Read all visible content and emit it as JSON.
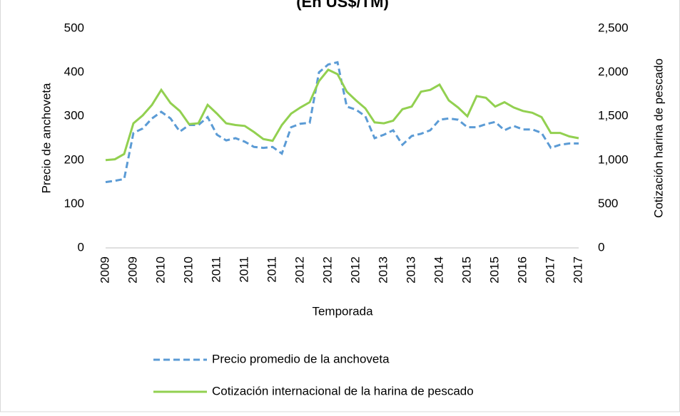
{
  "chart_data": {
    "type": "line",
    "title": "(En US$/TM)",
    "x_label": "Temporada",
    "y_label": "Precio de anchoveta",
    "y2_label": "Cotización harina de pescado",
    "categories": [
      "2009",
      null,
      null,
      "2009",
      null,
      null,
      "2010",
      null,
      null,
      "2010",
      null,
      null,
      "2011",
      null,
      null,
      "2011",
      null,
      null,
      "2011",
      null,
      null,
      "2012",
      null,
      null,
      "2012",
      null,
      null,
      "2012",
      null,
      null,
      "2013",
      null,
      null,
      "2013",
      null,
      null,
      "2014",
      null,
      null,
      "2015",
      null,
      null,
      "2015",
      null,
      null,
      "2016",
      null,
      null,
      "2017",
      null,
      null,
      "2017"
    ],
    "series": [
      {
        "name": "Precio promedio de la anchoveta",
        "color": "#5b9bd5",
        "dash": true,
        "axis": "y",
        "values": [
          150,
          153,
          157,
          262,
          272,
          295,
          310,
          295,
          265,
          280,
          280,
          298,
          258,
          245,
          250,
          242,
          230,
          228,
          230,
          215,
          275,
          283,
          285,
          400,
          418,
          423,
          322,
          315,
          300,
          250,
          258,
          268,
          235,
          255,
          260,
          268,
          292,
          295,
          292,
          275,
          275,
          282,
          287,
          268,
          278,
          270,
          270,
          262,
          228,
          235,
          238,
          238
        ]
      },
      {
        "name": "Cotización internacional de la harina de pescado",
        "color": "#92d050",
        "dash": false,
        "axis": "y2",
        "values": [
          1000,
          1010,
          1070,
          1420,
          1510,
          1630,
          1800,
          1650,
          1560,
          1410,
          1420,
          1630,
          1530,
          1420,
          1400,
          1390,
          1320,
          1240,
          1220,
          1400,
          1530,
          1600,
          1660,
          1900,
          2030,
          1980,
          1780,
          1680,
          1590,
          1430,
          1420,
          1450,
          1580,
          1610,
          1780,
          1800,
          1860,
          1680,
          1600,
          1500,
          1730,
          1710,
          1610,
          1660,
          1600,
          1560,
          1540,
          1490,
          1310,
          1310,
          1270,
          1250
        ]
      }
    ],
    "ylim": [
      0,
      500
    ],
    "yticks": [
      0,
      100,
      200,
      300,
      400,
      500
    ],
    "y2lim": [
      0,
      2500
    ],
    "y2ticks": [
      0,
      {
        "value": 500,
        "label": "500"
      },
      {
        "value": 1000,
        "label": "1,000"
      },
      {
        "value": 1500,
        "label": "1,500"
      },
      {
        "value": 2000,
        "label": "2,000"
      },
      {
        "value": 2500,
        "label": "2,500"
      }
    ],
    "grid": false,
    "legend": "bottom"
  }
}
